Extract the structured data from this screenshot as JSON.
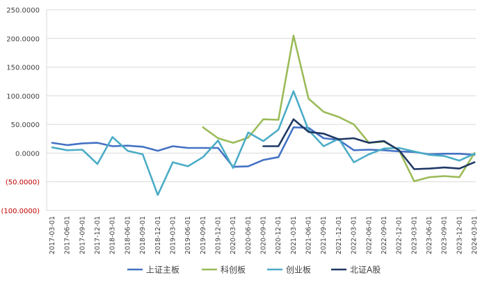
{
  "chart_data": {
    "type": "line",
    "title": "",
    "xlabel": "",
    "ylabel": "",
    "ylim": [
      -100,
      250
    ],
    "yticks": [
      250,
      200,
      150,
      100,
      50,
      0,
      -50,
      -100
    ],
    "ytick_labels": [
      "250.0000",
      "200.0000",
      "150.0000",
      "100.0000",
      "50.0000",
      "0.0000",
      "(50.0000)",
      "(100.0000)"
    ],
    "negative_label_color": "#c00000",
    "grid": "horizontal",
    "legend_position": "bottom",
    "categories": [
      "2017-03-01",
      "2017-06-01",
      "2017-09-01",
      "2017-12-01",
      "2018-03-01",
      "2018-06-01",
      "2018-09-01",
      "2018-12-01",
      "2019-03-01",
      "2019-06-01",
      "2019-09-01",
      "2019-12-01",
      "2020-03-01",
      "2020-06-01",
      "2020-09-01",
      "2020-12-01",
      "2021-03-01",
      "2021-06-01",
      "2021-09-01",
      "2021-12-01",
      "2022-03-01",
      "2022-06-01",
      "2022-09-01",
      "2022-12-01",
      "2023-03-01",
      "2023-06-01",
      "2023-09-01",
      "2023-12-01",
      "2024-03-01"
    ],
    "series": [
      {
        "name": "上证主板",
        "color": "#4472c4",
        "values": [
          18,
          14,
          17,
          18,
          12,
          13,
          11,
          4,
          12,
          9,
          9,
          9,
          -24,
          -23,
          -12,
          -7,
          45,
          44,
          26,
          23,
          5,
          6,
          5,
          3,
          2,
          -2,
          -1,
          -1,
          -3
        ]
      },
      {
        "name": "科创板",
        "color": "#9bbb59",
        "values": [
          null,
          null,
          null,
          null,
          null,
          null,
          null,
          null,
          null,
          null,
          45,
          26,
          18,
          27,
          59,
          58,
          205,
          95,
          72,
          63,
          50,
          18,
          20,
          5,
          -49,
          -42,
          -40,
          -42,
          0
        ]
      },
      {
        "name": "创业板",
        "color": "#4bacc6",
        "values": [
          10,
          5,
          6,
          -19,
          28,
          4,
          -2,
          -73,
          -16,
          -23,
          -7,
          22,
          -26,
          36,
          21,
          41,
          108,
          40,
          12,
          25,
          -16,
          -2,
          8,
          9,
          3,
          -3,
          -5,
          -13,
          -1
        ]
      },
      {
        "name": "北证A股",
        "color": "#1f3864",
        "values": [
          null,
          null,
          null,
          null,
          null,
          null,
          null,
          null,
          null,
          null,
          null,
          null,
          null,
          null,
          12,
          12,
          59,
          37,
          34,
          24,
          26,
          18,
          21,
          5,
          -28,
          -27,
          -25,
          -27,
          -16
        ]
      }
    ]
  }
}
